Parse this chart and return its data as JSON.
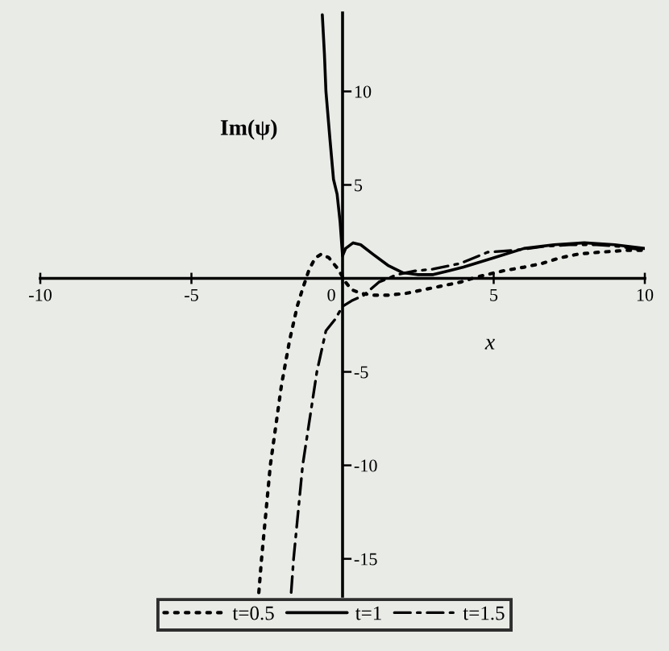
{
  "chart_data": {
    "type": "line",
    "xlabel": "x",
    "ylabel": "Im(ψ)",
    "xlim": [
      -10,
      10
    ],
    "ylim": [
      -17,
      14.2
    ],
    "xticks": [
      -10,
      -5,
      0,
      5,
      10
    ],
    "yticks": [
      -15,
      -10,
      -5,
      5,
      10
    ],
    "grid": false,
    "legend": "bottom",
    "series": [
      {
        "name": "t=0.5",
        "color": "#000000",
        "line_style": "dotted",
        "x": [
          -2.77,
          -2.68,
          -2.39,
          -2.02,
          -1.75,
          -1.5,
          -1.33,
          -1.1,
          -0.9,
          -0.7,
          -0.45,
          -0.15,
          0.1,
          0.3,
          0.6,
          1,
          1.5,
          2.1,
          3,
          3.9,
          4.5,
          5.3,
          6,
          6.6,
          7.2,
          7.8,
          8.5,
          9.4,
          10
        ],
        "values": [
          -16.8,
          -15,
          -10,
          -5.7,
          -3.3,
          -1.5,
          -0.6,
          0.5,
          1.1,
          1.3,
          1.1,
          0.5,
          -0.2,
          -0.6,
          -0.8,
          -0.9,
          -0.9,
          -0.8,
          -0.5,
          -0.2,
          0.1,
          0.4,
          0.6,
          0.8,
          1.1,
          1.3,
          1.4,
          1.5,
          1.5
        ]
      },
      {
        "name": "t=1",
        "color": "#000000",
        "line_style": "solid",
        "x": [
          -0.67,
          -0.6,
          -0.55,
          -0.42,
          -0.3,
          -0.18,
          -0.08,
          0,
          0.1,
          0.35,
          0.6,
          1,
          1.5,
          2,
          2.5,
          3,
          3.5,
          4,
          5,
          6,
          7,
          8,
          9,
          10
        ],
        "values": [
          14.1,
          12,
          10,
          7.5,
          5.3,
          4.5,
          3,
          1.2,
          1.6,
          1.9,
          1.8,
          1.3,
          0.7,
          0.3,
          0.2,
          0.2,
          0.4,
          0.6,
          1.1,
          1.6,
          1.8,
          1.9,
          1.8,
          1.6
        ]
      },
      {
        "name": "t=1.5",
        "color": "#000000",
        "line_style": "dashdot",
        "x": [
          -1.7,
          -1.62,
          -1.32,
          -0.85,
          -0.55,
          -0.25,
          0,
          0.3,
          0.7,
          1.2,
          1.8,
          2.4,
          3,
          3.9,
          4.8,
          5.7,
          6.6,
          7.5,
          8.4,
          9.2,
          10
        ],
        "values": [
          -16.8,
          -15,
          -10,
          -5,
          -2.8,
          -2.2,
          -1.5,
          -1.2,
          -0.9,
          -0.2,
          0.2,
          0.4,
          0.5,
          0.8,
          1.4,
          1.5,
          1.7,
          1.8,
          1.8,
          1.7,
          1.5
        ]
      }
    ]
  }
}
